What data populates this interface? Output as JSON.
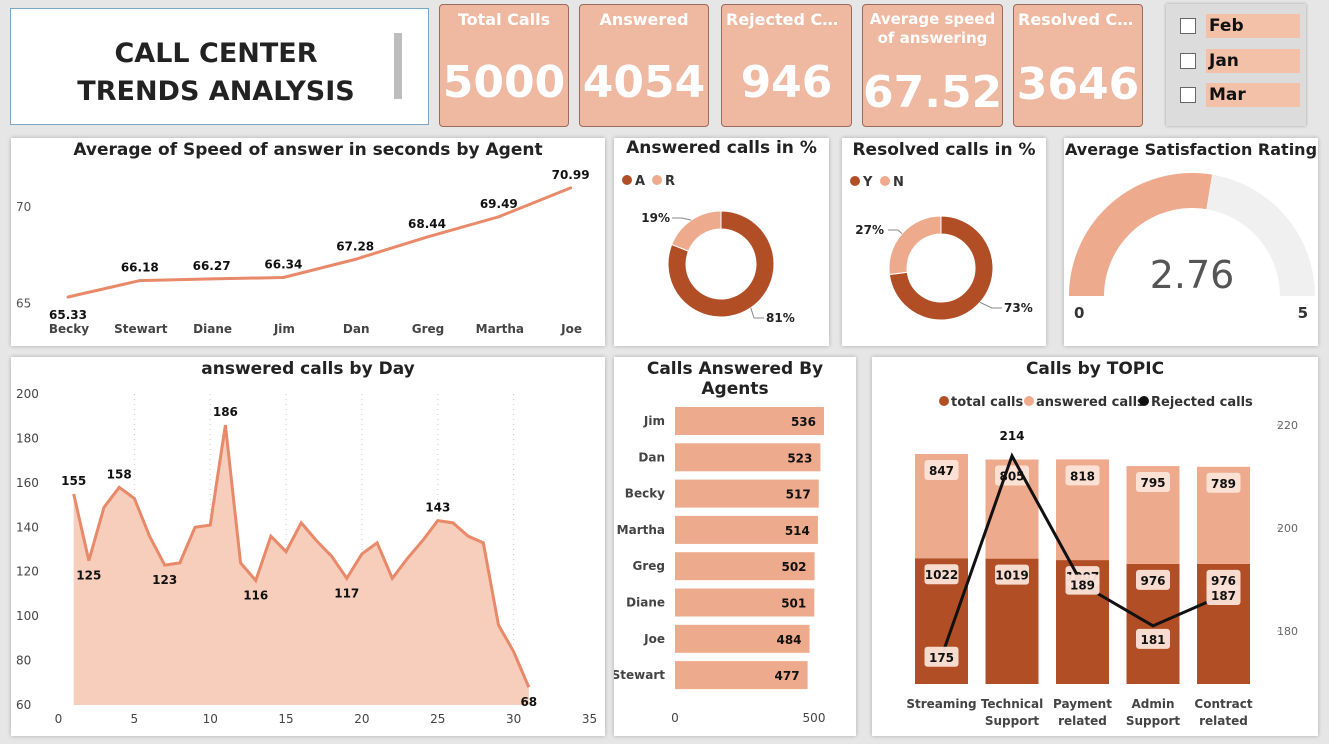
{
  "header": {
    "title": "CALL CENTER TRENDS ANALYSIS"
  },
  "kpis": [
    {
      "label": "Total Calls",
      "value": "5000"
    },
    {
      "label": "Answered",
      "value": "4054"
    },
    {
      "label": "Rejected Calls",
      "value": "946"
    },
    {
      "label": "Average speed of answering",
      "value": "67.52"
    },
    {
      "label": "Resolved Cal...",
      "value": "3646"
    }
  ],
  "slicer": {
    "items": [
      "Feb",
      "Jan",
      "Mar"
    ]
  },
  "colors": {
    "light": "#eeaa8c",
    "dark": "#b14e26",
    "pale": "#f6c9b4",
    "line": "#e8896a",
    "gaugebg": "#f0f0f0"
  },
  "chart_data": [
    {
      "id": "speed_by_agent",
      "type": "line",
      "title": "Average of Speed of answer in seconds by Agent",
      "categories": [
        "Becky",
        "Stewart",
        "Diane",
        "Jim",
        "Dan",
        "Greg",
        "Martha",
        "Joe"
      ],
      "values": [
        65.33,
        66.18,
        66.27,
        66.34,
        67.28,
        68.44,
        69.49,
        70.99
      ],
      "ylim": [
        64.5,
        71.5
      ],
      "yticks": [
        65,
        70
      ]
    },
    {
      "id": "answered_pct",
      "type": "pie",
      "title": "Answered calls in %",
      "legend": [
        "A",
        "R"
      ],
      "values": [
        81,
        19
      ],
      "labels": [
        "81%",
        "19%"
      ]
    },
    {
      "id": "resolved_pct",
      "type": "pie",
      "title": "Resolved calls in %",
      "legend": [
        "Y",
        "N"
      ],
      "values": [
        73,
        27
      ],
      "labels": [
        "73%",
        "27%"
      ]
    },
    {
      "id": "satisfaction",
      "type": "gauge",
      "title": "Average Satisfaction Rating",
      "value": 2.76,
      "value_label": "2.76",
      "min": 0,
      "max": 5,
      "min_label": "0",
      "max_label": "5"
    },
    {
      "id": "answered_by_day",
      "type": "area",
      "title": "answered calls by Day",
      "x": [
        1,
        2,
        3,
        4,
        5,
        6,
        7,
        8,
        9,
        10,
        11,
        12,
        13,
        14,
        15,
        16,
        17,
        18,
        19,
        20,
        21,
        22,
        23,
        24,
        25,
        26,
        27,
        28,
        29,
        30,
        31
      ],
      "y": [
        155,
        125,
        149,
        158,
        153,
        136,
        123,
        124,
        140,
        141,
        186,
        124,
        116,
        136,
        129,
        142,
        134,
        127,
        117,
        128,
        133,
        117,
        126,
        134,
        143,
        142,
        136,
        133,
        96,
        84,
        68
      ],
      "labeled_points": {
        "1": "155",
        "2": "125",
        "4": "158",
        "7": "123",
        "11": "186",
        "13": "116",
        "19": "117",
        "25": "143",
        "31": "68"
      },
      "xlim": [
        0,
        35
      ],
      "ylim": [
        60,
        200
      ],
      "xticks": [
        0,
        5,
        10,
        15,
        20,
        25,
        30,
        35
      ],
      "yticks": [
        60,
        80,
        100,
        120,
        140,
        160,
        180,
        200
      ]
    },
    {
      "id": "calls_by_agent",
      "type": "bar",
      "title": "Calls Answered By Agents",
      "categories": [
        "Jim",
        "Dan",
        "Becky",
        "Martha",
        "Greg",
        "Diane",
        "Joe",
        "Stewart"
      ],
      "values": [
        536,
        523,
        517,
        514,
        502,
        501,
        484,
        477
      ],
      "xticks": [
        0,
        500
      ],
      "xlim": [
        0,
        550
      ]
    },
    {
      "id": "calls_by_topic",
      "type": "bar",
      "title": "Calls by TOPIC",
      "legend": [
        "total calls",
        "answered calls",
        "Rejected calls"
      ],
      "categories": [
        "Streaming",
        "Technical Support",
        "Payment related",
        "Admin Support",
        "Contract related"
      ],
      "category_lines": [
        [
          "Streaming"
        ],
        [
          "Technical",
          "Support"
        ],
        [
          "Payment",
          "related"
        ],
        [
          "Admin",
          "Support"
        ],
        [
          "Contract",
          "related"
        ]
      ],
      "series": [
        {
          "name": "total calls",
          "values": [
            1022,
            1019,
            1007,
            976,
            976
          ]
        },
        {
          "name": "answered calls",
          "values": [
            847,
            805,
            818,
            795,
            789
          ]
        },
        {
          "name": "Rejected calls",
          "values": [
            175,
            214,
            189,
            181,
            187
          ]
        }
      ],
      "stack_max": 1869,
      "y2lim": [
        170,
        220
      ],
      "y2ticks": [
        180,
        200,
        220
      ]
    }
  ]
}
